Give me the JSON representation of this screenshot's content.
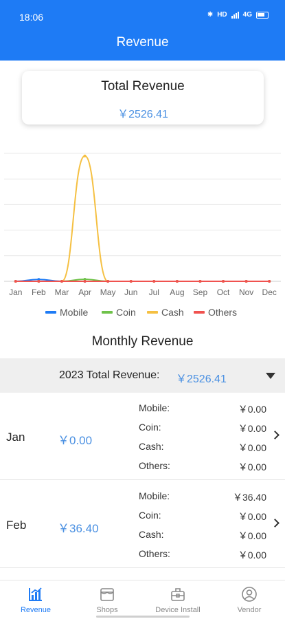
{
  "status_bar": {
    "time": "18:06",
    "network": "HD",
    "signal": "4G"
  },
  "header": {
    "title": "Revenue"
  },
  "total_card": {
    "title": "Total Revenue",
    "value": "￥2526.41"
  },
  "chart_data": {
    "type": "line",
    "categories": [
      "Jan",
      "Feb",
      "Mar",
      "Apr",
      "May",
      "Jun",
      "Jul",
      "Aug",
      "Sep",
      "Oct",
      "Nov",
      "Dec"
    ],
    "series": [
      {
        "name": "Mobile",
        "color": "#1e7bf5",
        "values": [
          0,
          36.4,
          0,
          0,
          0,
          0,
          0,
          0,
          0,
          0,
          0,
          0
        ]
      },
      {
        "name": "Coin",
        "color": "#6fc24a",
        "values": [
          0,
          0,
          0,
          40,
          0,
          0,
          0,
          0,
          0,
          0,
          0,
          0
        ]
      },
      {
        "name": "Cash",
        "color": "#f5c042",
        "values": [
          0,
          0,
          0,
          2450,
          0,
          0,
          0,
          0,
          0,
          0,
          0,
          0
        ]
      },
      {
        "name": "Others",
        "color": "#f0524f",
        "values": [
          0,
          0,
          0,
          0,
          0,
          0,
          0,
          0,
          0,
          0,
          0,
          0
        ]
      }
    ],
    "ylim": [
      0,
      2500
    ],
    "grid": true,
    "legend": "bottom"
  },
  "monthly": {
    "title": "Monthly Revenue",
    "year_label": "2023 Total Revenue:",
    "year_value": "￥2526.41",
    "rows": [
      {
        "month": "Jan",
        "total": "￥0.00",
        "details": [
          {
            "label": "Mobile:",
            "value": "￥0.00"
          },
          {
            "label": "Coin:",
            "value": "￥0.00"
          },
          {
            "label": "Cash:",
            "value": "￥0.00"
          },
          {
            "label": "Others:",
            "value": "￥0.00"
          }
        ]
      },
      {
        "month": "Feb",
        "total": "￥36.40",
        "details": [
          {
            "label": "Mobile:",
            "value": "￥36.40"
          },
          {
            "label": "Coin:",
            "value": "￥0.00"
          },
          {
            "label": "Cash:",
            "value": "￥0.00"
          },
          {
            "label": "Others:",
            "value": "￥0.00"
          }
        ]
      }
    ]
  },
  "tabs": [
    {
      "label": "Revenue",
      "icon": "chart-icon",
      "active": true
    },
    {
      "label": "Shops",
      "icon": "shop-icon",
      "active": false
    },
    {
      "label": "Device Install",
      "icon": "device-install-icon",
      "active": false
    },
    {
      "label": "Vendor",
      "icon": "vendor-icon",
      "active": false
    }
  ]
}
